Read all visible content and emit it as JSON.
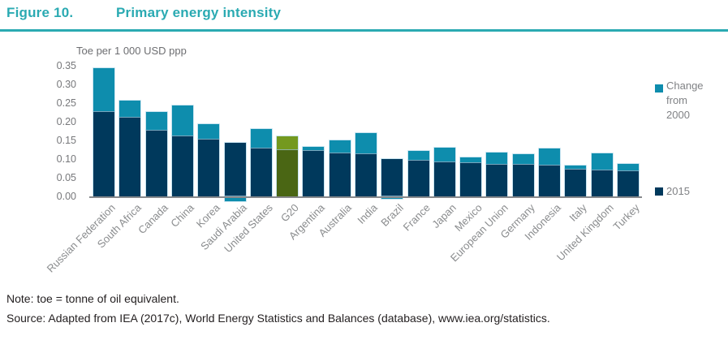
{
  "figure": {
    "label": "Figure 10.",
    "title": "Primary energy intensity"
  },
  "chart_data": {
    "type": "bar",
    "stacked": true,
    "title": "Primary energy intensity",
    "ylabel": "Toe per 1 000 USD ppp",
    "xlabel": "",
    "ylim": [
      0,
      0.35
    ],
    "grid": false,
    "legend_position": "right",
    "y_ticks": [
      "0.35",
      "0.30",
      "0.25",
      "0.20",
      "0.15",
      "0.10",
      "0.05",
      "0.00"
    ],
    "legend": [
      {
        "label": "Change from 2000",
        "color": "#0e8dad"
      },
      {
        "label": "2015",
        "color": "#00395c"
      }
    ],
    "colors": {
      "value_2015": "#00395c",
      "change": "#0e8dad",
      "g20_2015": "#4a6614",
      "g20_change": "#74991f"
    },
    "categories": [
      "Russian Federation",
      "South Africa",
      "Canada",
      "China",
      "Korea",
      "Saudi Arabia",
      "United States",
      "G20",
      "Argentina",
      "Australia",
      "India",
      "Brazil",
      "France",
      "Japan",
      "Mexico",
      "European Union",
      "Germany",
      "Indonesia",
      "Italy",
      "United Kingdom",
      "Turkey"
    ],
    "bars": [
      {
        "label": "Russian Federation",
        "value_2015": 0.228,
        "change_from_2000": 0.115
      },
      {
        "label": "South Africa",
        "value_2015": 0.214,
        "change_from_2000": 0.043
      },
      {
        "label": "Canada",
        "value_2015": 0.179,
        "change_from_2000": 0.047
      },
      {
        "label": "China",
        "value_2015": 0.162,
        "change_from_2000": 0.082
      },
      {
        "label": "Korea",
        "value_2015": 0.155,
        "change_from_2000": 0.038
      },
      {
        "label": "Saudi Arabia",
        "value_2015": 0.143,
        "change_from_2000": -0.014
      },
      {
        "label": "United States",
        "value_2015": 0.13,
        "change_from_2000": 0.05
      },
      {
        "label": "G20",
        "value_2015": 0.126,
        "change_from_2000": 0.036,
        "highlight": true
      },
      {
        "label": "Argentina",
        "value_2015": 0.123,
        "change_from_2000": 0.009
      },
      {
        "label": "Australia",
        "value_2015": 0.118,
        "change_from_2000": 0.031
      },
      {
        "label": "India",
        "value_2015": 0.115,
        "change_from_2000": 0.054
      },
      {
        "label": "Brazil",
        "value_2015": 0.101,
        "change_from_2000": -0.007
      },
      {
        "label": "France",
        "value_2015": 0.097,
        "change_from_2000": 0.025
      },
      {
        "label": "Japan",
        "value_2015": 0.094,
        "change_from_2000": 0.036
      },
      {
        "label": "Mexico",
        "value_2015": 0.092,
        "change_from_2000": 0.013
      },
      {
        "label": "European Union",
        "value_2015": 0.087,
        "change_from_2000": 0.03
      },
      {
        "label": "Germany",
        "value_2015": 0.086,
        "change_from_2000": 0.027
      },
      {
        "label": "Indonesia",
        "value_2015": 0.084,
        "change_from_2000": 0.045
      },
      {
        "label": "Italy",
        "value_2015": 0.074,
        "change_from_2000": 0.009
      },
      {
        "label": "United Kingdom",
        "value_2015": 0.071,
        "change_from_2000": 0.045
      },
      {
        "label": "Turkey",
        "value_2015": 0.069,
        "change_from_2000": 0.018
      }
    ]
  },
  "notes": {
    "note": "Note: toe = tonne of oil equivalent.",
    "source": "Source: Adapted from IEA (2017c), World Energy Statistics and Balances (database), www.iea.org/statistics."
  },
  "theme": {
    "accent_teal": "#2aaab2",
    "bar_navy": "#00395c",
    "bar_teal": "#0e8dad",
    "bar_olive_dark": "#4a6614",
    "bar_olive_light": "#74991f"
  }
}
